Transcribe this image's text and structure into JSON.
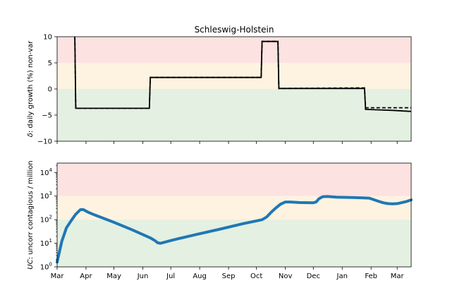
{
  "chart_data": [
    {
      "type": "line",
      "title": "Schleswig-Holstein",
      "ylabel_italic": "δ",
      "ylabel_rest": ": daily growth (%) non-var",
      "ylim": [
        -10,
        10
      ],
      "yticks": [
        -10,
        -5,
        0,
        5,
        10
      ],
      "x_range_days": [
        0,
        380
      ],
      "bands": [
        {
          "from": 5,
          "to": 10,
          "color": "#fde2e2"
        },
        {
          "from": 0,
          "to": 5,
          "color": "#fdf3e0"
        },
        {
          "from": -10,
          "to": 0,
          "color": "#e4f0e2"
        }
      ],
      "series": [
        {
          "style": "solid",
          "color": "#000000",
          "points": [
            [
              19,
              10
            ],
            [
              20,
              -3.7
            ],
            [
              99,
              -3.7
            ],
            [
              100,
              2.2
            ],
            [
              219,
              2.2
            ],
            [
              220,
              9.1
            ],
            [
              237,
              9.1
            ],
            [
              238,
              0.1
            ],
            [
              330,
              0.1
            ],
            [
              331,
              -3.9
            ],
            [
              345,
              -4.0
            ],
            [
              360,
              -4.1
            ],
            [
              380,
              -4.3
            ]
          ]
        },
        {
          "style": "dashed",
          "color": "#000000",
          "points": [
            [
              19,
              10
            ],
            [
              20,
              -3.7
            ],
            [
              99,
              -3.7
            ],
            [
              100,
              2.2
            ],
            [
              219,
              2.2
            ],
            [
              220,
              9.1
            ],
            [
              237,
              9.1
            ],
            [
              238,
              0.1
            ],
            [
              330,
              0.2
            ],
            [
              331,
              -3.6
            ],
            [
              380,
              -3.6
            ]
          ]
        }
      ]
    },
    {
      "type": "line",
      "ylabel_italic": "UC",
      "ylabel_rest": ": uncorr contagious / million",
      "yscale": "log",
      "ylim": [
        1,
        25000
      ],
      "yticks": [
        {
          "base": "10",
          "exp": "0",
          "value": 1
        },
        {
          "base": "10",
          "exp": "1",
          "value": 10
        },
        {
          "base": "10",
          "exp": "2",
          "value": 100
        },
        {
          "base": "10",
          "exp": "3",
          "value": 1000
        },
        {
          "base": "10",
          "exp": "4",
          "value": 10000
        }
      ],
      "x_range_days": [
        0,
        380
      ],
      "xticks": [
        {
          "label": "Mar",
          "day": 0
        },
        {
          "label": "Apr",
          "day": 31
        },
        {
          "label": "May",
          "day": 61
        },
        {
          "label": "Jun",
          "day": 92
        },
        {
          "label": "Jul",
          "day": 122
        },
        {
          "label": "Aug",
          "day": 153
        },
        {
          "label": "Sep",
          "day": 184
        },
        {
          "label": "Oct",
          "day": 214
        },
        {
          "label": "Nov",
          "day": 245
        },
        {
          "label": "Dec",
          "day": 275
        },
        {
          "label": "Jan",
          "day": 306
        },
        {
          "label": "Feb",
          "day": 337
        },
        {
          "label": "Mar",
          "day": 365
        }
      ],
      "bands": [
        {
          "from": 1000,
          "to": 25000,
          "color": "#fde2e2"
        },
        {
          "from": 100,
          "to": 1000,
          "color": "#fdf3e0"
        },
        {
          "from": 1,
          "to": 100,
          "color": "#e4f0e2"
        }
      ],
      "series": [
        {
          "style": "solid",
          "color": "#1f77b4",
          "points": [
            [
              0,
              1.6
            ],
            [
              5,
              12
            ],
            [
              10,
              45
            ],
            [
              15,
              90
            ],
            [
              20,
              170
            ],
            [
              25,
              265
            ],
            [
              28,
              270
            ],
            [
              33,
              210
            ],
            [
              40,
              160
            ],
            [
              60,
              80
            ],
            [
              80,
              38
            ],
            [
              100,
              17
            ],
            [
              105,
              13
            ],
            [
              108,
              10.5
            ],
            [
              111,
              10
            ],
            [
              115,
              11
            ],
            [
              125,
              14
            ],
            [
              150,
              24
            ],
            [
              175,
              40
            ],
            [
              200,
              68
            ],
            [
              220,
              100
            ],
            [
              225,
              130
            ],
            [
              230,
              210
            ],
            [
              235,
              320
            ],
            [
              240,
              460
            ],
            [
              245,
              560
            ],
            [
              250,
              560
            ],
            [
              260,
              530
            ],
            [
              275,
              520
            ],
            [
              278,
              560
            ],
            [
              281,
              770
            ],
            [
              285,
              940
            ],
            [
              290,
              960
            ],
            [
              300,
              900
            ],
            [
              320,
              860
            ],
            [
              335,
              820
            ],
            [
              340,
              700
            ],
            [
              345,
              600
            ],
            [
              350,
              520
            ],
            [
              355,
              480
            ],
            [
              360,
              470
            ],
            [
              365,
              480
            ],
            [
              370,
              530
            ],
            [
              375,
              590
            ],
            [
              380,
              690
            ]
          ]
        }
      ]
    }
  ]
}
